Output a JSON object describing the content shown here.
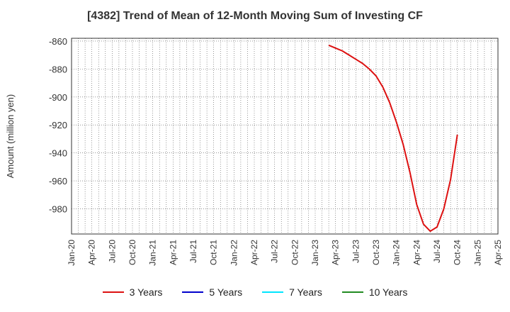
{
  "chart_data": {
    "type": "line",
    "title": "[4382]  Trend of Mean of 12-Month Moving Sum of Investing CF",
    "xlabel": "",
    "ylabel": "Amount (million yen)",
    "x_tick_labels": [
      "Jan-20",
      "Apr-20",
      "Jul-20",
      "Oct-20",
      "Jan-21",
      "Apr-21",
      "Jul-21",
      "Oct-21",
      "Jan-22",
      "Apr-22",
      "Jul-22",
      "Oct-22",
      "Jan-23",
      "Apr-23",
      "Jul-23",
      "Oct-23",
      "Jan-24",
      "Apr-24",
      "Jul-24",
      "Oct-24",
      "Jan-25",
      "Apr-25"
    ],
    "ylim": [
      -998,
      -858
    ],
    "y_ticks": [
      -860,
      -880,
      -900,
      -920,
      -940,
      -960,
      -980
    ],
    "grid": true,
    "legend_position": "bottom",
    "series": [
      {
        "name": "3 Years",
        "color": "#dd1111",
        "points": [
          [
            "2023-03",
            -863
          ],
          [
            "2023-04",
            -865
          ],
          [
            "2023-05",
            -867
          ],
          [
            "2023-06",
            -870
          ],
          [
            "2023-07",
            -873
          ],
          [
            "2023-08",
            -876
          ],
          [
            "2023-09",
            -880
          ],
          [
            "2023-10",
            -885
          ],
          [
            "2023-11",
            -893
          ],
          [
            "2023-12",
            -904
          ],
          [
            "2024-01",
            -918
          ],
          [
            "2024-02",
            -934
          ],
          [
            "2024-03",
            -954
          ],
          [
            "2024-04",
            -977
          ],
          [
            "2024-05",
            -991
          ],
          [
            "2024-06",
            -996
          ],
          [
            "2024-07",
            -993
          ],
          [
            "2024-08",
            -980
          ],
          [
            "2024-09",
            -959
          ],
          [
            "2024-10",
            -927
          ]
        ]
      },
      {
        "name": "5 Years",
        "color": "#0000cc",
        "points": []
      },
      {
        "name": "7 Years",
        "color": "#00e5ff",
        "points": []
      },
      {
        "name": "10 Years",
        "color": "#228b22",
        "points": []
      }
    ]
  }
}
